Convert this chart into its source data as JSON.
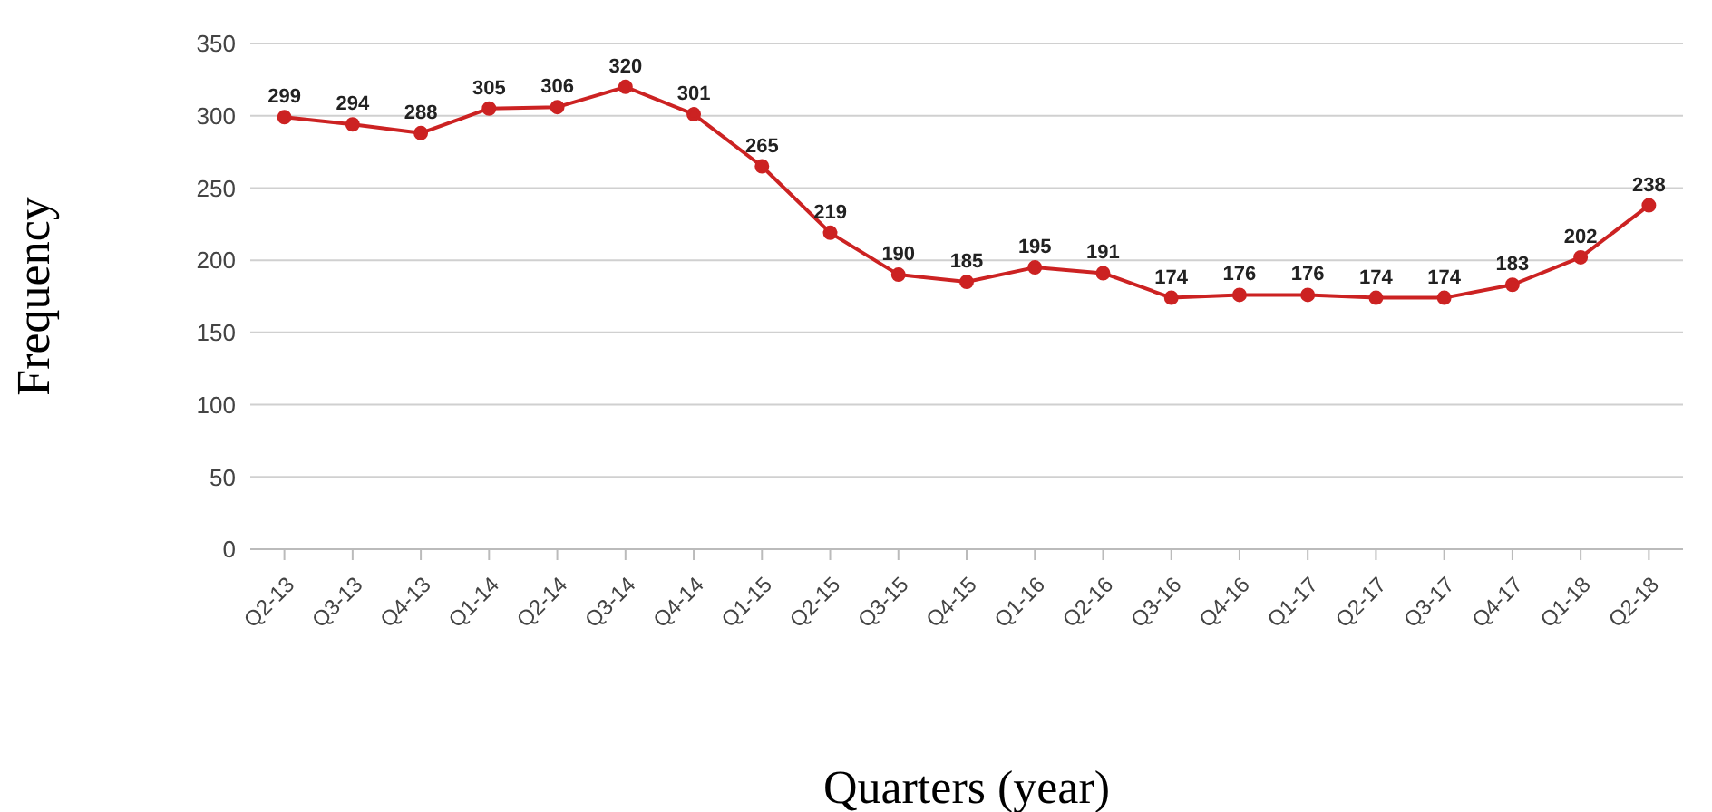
{
  "chart_data": {
    "type": "line",
    "xlabel": "Quarters (year)",
    "ylabel": "Frequency",
    "categories": [
      "Q2-13",
      "Q3-13",
      "Q4-13",
      "Q1-14",
      "Q2-14",
      "Q3-14",
      "Q4-14",
      "Q1-15",
      "Q2-15",
      "Q3-15",
      "Q4-15",
      "Q1-16",
      "Q2-16",
      "Q3-16",
      "Q4-16",
      "Q1-17",
      "Q2-17",
      "Q3-17",
      "Q4-17",
      "Q1-18",
      "Q2-18"
    ],
    "series": [
      {
        "color": "#cc2222",
        "values": [
          299,
          294,
          288,
          305,
          306,
          320,
          301,
          265,
          219,
          190,
          185,
          195,
          191,
          174,
          176,
          176,
          174,
          174,
          183,
          202,
          238
        ]
      }
    ],
    "ylim": [
      0,
      350
    ],
    "yticks": [
      0,
      50,
      100,
      150,
      200,
      250,
      300,
      350
    ],
    "grid": "y",
    "marker": "circle",
    "line_style": "solid",
    "data_labels": true
  }
}
